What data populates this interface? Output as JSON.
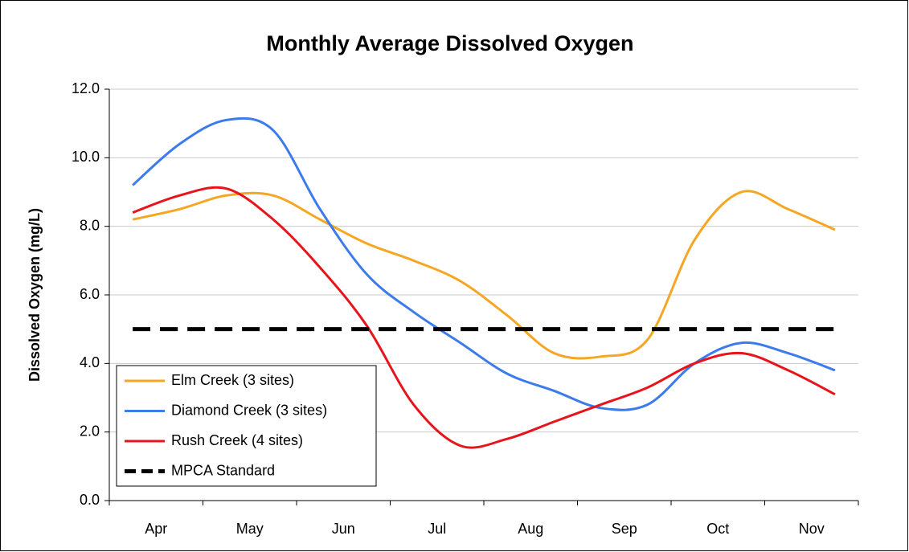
{
  "chart_data": {
    "type": "line",
    "title": "Monthly Average Dissolved Oxygen",
    "y_label": "Dissolved Oxygen (mg/L)",
    "categories": [
      "Apr",
      null,
      "May",
      null,
      "Jun",
      null,
      "Jul",
      null,
      "Aug",
      null,
      "Sep",
      null,
      "Oct",
      null,
      "Nov",
      null
    ],
    "series": [
      {
        "name": "Elm Creek (3 sites)",
        "color": "#f5a623",
        "values": [
          8.2,
          8.5,
          8.9,
          8.9,
          8.2,
          7.5,
          7.0,
          6.4,
          5.4,
          4.3,
          4.2,
          4.7,
          7.6,
          9.0,
          8.5,
          7.9
        ]
      },
      {
        "name": "Diamond Creek (3 sites)",
        "color": "#3b7bea",
        "values": [
          9.2,
          10.4,
          11.1,
          10.8,
          8.5,
          6.6,
          5.5,
          4.6,
          3.7,
          3.2,
          2.7,
          2.8,
          4.0,
          4.6,
          4.3,
          3.8
        ]
      },
      {
        "name": "Rush Creek (4 sites)",
        "color": "#e8141c",
        "values": [
          8.4,
          8.9,
          9.1,
          8.2,
          6.8,
          5.1,
          2.8,
          1.6,
          1.8,
          2.3,
          2.8,
          3.3,
          4.0,
          4.3,
          3.8,
          3.1
        ]
      },
      {
        "name": "MPCA Standard",
        "color": "#000000",
        "dashed": true,
        "values": [
          5.0,
          5.0,
          5.0,
          5.0,
          5.0,
          5.0,
          5.0,
          5.0,
          5.0,
          5.0,
          5.0,
          5.0,
          5.0,
          5.0,
          5.0,
          5.0
        ]
      }
    ],
    "ylim": [
      0,
      12
    ],
    "yticks": [
      {
        "value": 0,
        "label": "0.0"
      },
      {
        "value": 2,
        "label": "2.0"
      },
      {
        "value": 4,
        "label": "4.0"
      },
      {
        "value": 6,
        "label": "6.0"
      },
      {
        "value": 8,
        "label": "8.0"
      },
      {
        "value": 10,
        "label": "10.0"
      },
      {
        "value": 12,
        "label": "12.0"
      }
    ],
    "grid": true,
    "legend": "lower left"
  }
}
